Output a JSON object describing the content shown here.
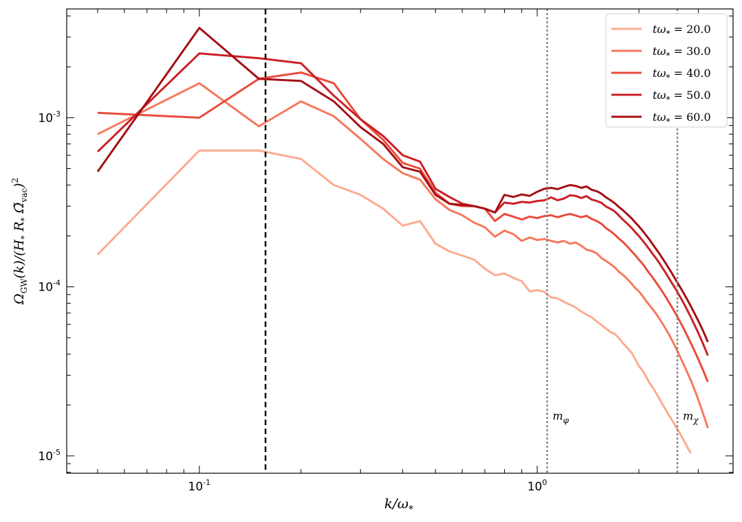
{
  "chart_data": {
    "type": "line",
    "title": "",
    "xlabel": "k/ω*",
    "ylabel": "Ω_GW(k)/(H* R* Ω̃_vac)²",
    "xscale": "log",
    "yscale": "log",
    "xlim": [
      0.0405,
      3.8
    ],
    "ylim": [
      7.9e-06,
      0.0044
    ],
    "x_ticks": [
      {
        "value": 0.1,
        "base": "10",
        "exp": "-1"
      },
      {
        "value": 1.0,
        "base": "10",
        "exp": "0"
      }
    ],
    "y_ticks": [
      {
        "value": 1e-05,
        "base": "10",
        "exp": "-5"
      },
      {
        "value": 0.0001,
        "base": "10",
        "exp": "-4"
      },
      {
        "value": 0.001,
        "base": "10",
        "exp": "-3"
      }
    ],
    "grid": false,
    "legend_position": "top-right",
    "colors": {
      "series": [
        "#fcab8f",
        "#f7785c",
        "#ea4b3c",
        "#cc1f25",
        "#a50f15"
      ],
      "mass_lines": "#888888",
      "dashed_line": "#000000"
    },
    "vertical_lines": [
      {
        "x": 0.157,
        "style": "dashed",
        "label": ""
      },
      {
        "x": 1.07,
        "style": "dotted",
        "label": "m_φ"
      },
      {
        "x": 2.6,
        "style": "dotted",
        "label": "m_χ"
      }
    ],
    "mass_labels": {
      "phi": "mφ",
      "chi": "mχ"
    },
    "x": [
      0.05,
      0.1,
      0.15,
      0.2,
      0.25,
      0.3,
      0.35,
      0.4,
      0.45,
      0.5,
      0.55,
      0.6,
      0.65,
      0.7,
      0.75,
      0.8,
      0.85,
      0.9,
      0.95,
      1.0,
      1.05,
      1.1,
      1.15,
      1.2,
      1.25,
      1.3,
      1.35,
      1.4,
      1.45,
      1.5,
      1.55,
      1.6,
      1.65,
      1.7,
      1.75,
      1.8,
      1.85,
      1.9,
      1.95,
      2.0,
      2.05,
      2.1,
      2.15,
      2.2,
      2.25,
      2.3,
      2.35,
      2.4,
      2.45,
      2.5,
      2.55,
      2.6,
      2.65,
      2.7,
      2.75,
      2.8,
      2.85,
      2.9,
      2.95,
      3.0,
      3.05,
      3.1,
      3.15,
      3.2
    ],
    "series": [
      {
        "name": "tω* = 20.0",
        "label_prefix": "tω* =",
        "label_value": "20.0",
        "values": [
          0.000155,
          0.00064,
          0.00064,
          0.00057,
          0.0004,
          0.00035,
          0.00029,
          0.00023,
          0.000245,
          0.00018,
          0.000162,
          0.000153,
          0.000145,
          0.000128,
          0.000117,
          0.00012,
          0.000113,
          0.000108,
          9.4e-05,
          9.55e-05,
          9.35e-05,
          8.65e-05,
          8.55e-05,
          8.15e-05,
          7.85e-05,
          7.55e-05,
          7.15e-05,
          6.85e-05,
          6.6e-05,
          6.25e-05,
          5.95e-05,
          5.65e-05,
          5.4e-05,
          5.25e-05,
          4.95e-05,
          4.6e-05,
          4.35e-05,
          4.1e-05,
          3.75e-05,
          3.4e-05,
          3.2e-05,
          2.95e-05,
          2.7e-05,
          2.53e-05,
          2.35e-05,
          2.18e-05,
          2.02e-05,
          1.88e-05,
          1.75e-05,
          1.64e-05,
          1.54e-05,
          1.44e-05,
          1.35e-05,
          1.26e-05,
          1.18e-05,
          1.1e-05,
          1.04e-05,
          null,
          null,
          null,
          null,
          null,
          null,
          null
        ]
      },
      {
        "name": "tω* = 30.0",
        "label_prefix": "tω* =",
        "label_value": "30.0",
        "values": [
          0.0008,
          0.0016,
          0.00089,
          0.00125,
          0.00102,
          0.00075,
          0.00057,
          0.00047,
          0.00043,
          0.00033,
          0.000285,
          0.000265,
          0.00024,
          0.000225,
          0.000198,
          0.000215,
          0.000205,
          0.000187,
          0.000196,
          0.000189,
          0.000192,
          0.000187,
          0.000183,
          0.000187,
          0.00018,
          0.000183,
          0.000175,
          0.000166,
          0.000163,
          0.000158,
          0.000148,
          0.000142,
          0.000136,
          0.00013,
          0.000122,
          0.000117,
          0.000111,
          0.000105,
          9.85e-05,
          9.4e-05,
          8.85e-05,
          8.25e-05,
          7.78e-05,
          7.35e-05,
          6.92e-05,
          6.48e-05,
          6.05e-05,
          5.65e-05,
          5.27e-05,
          4.88e-05,
          4.52e-05,
          4.18e-05,
          3.85e-05,
          3.55e-05,
          3.28e-05,
          3.03e-05,
          2.8e-05,
          2.57e-05,
          2.35e-05,
          2.14e-05,
          1.95e-05,
          1.77e-05,
          1.61e-05,
          1.46e-05
        ]
      },
      {
        "name": "tω* = 40.0",
        "label_prefix": "tω* =",
        "label_value": "40.0",
        "values": [
          0.00107,
          0.001,
          0.0017,
          0.00185,
          0.0016,
          0.00098,
          0.00074,
          0.00054,
          0.0005,
          0.00036,
          0.00031,
          0.0003,
          0.0003,
          0.00029,
          0.000245,
          0.00027,
          0.00026,
          0.00025,
          0.00026,
          0.000255,
          0.000262,
          0.000265,
          0.000258,
          0.000265,
          0.00027,
          0.000264,
          0.000258,
          0.000263,
          0.000252,
          0.000245,
          0.000236,
          0.000222,
          0.000213,
          0.000203,
          0.000192,
          0.000183,
          0.000173,
          0.000163,
          0.000154,
          0.000145,
          0.000137,
          0.000128,
          0.00012,
          0.000113,
          0.000106,
          9.95e-05,
          9.32e-05,
          8.72e-05,
          8.15e-05,
          7.62e-05,
          7.12e-05,
          6.65e-05,
          6.2e-05,
          5.78e-05,
          5.38e-05,
          5e-05,
          4.65e-05,
          4.32e-05,
          4.01e-05,
          3.72e-05,
          3.45e-05,
          3.2e-05,
          2.96e-05,
          2.74e-05
        ]
      },
      {
        "name": "tω* = 50.0",
        "label_prefix": "tω* =",
        "label_value": "50.0",
        "values": [
          0.00063,
          0.0024,
          0.00225,
          0.0021,
          0.00135,
          0.00098,
          0.00078,
          0.0006,
          0.00055,
          0.00038,
          0.00034,
          0.00031,
          0.0003,
          0.00029,
          0.000275,
          0.000315,
          0.00031,
          0.000318,
          0.000315,
          0.000322,
          0.000325,
          0.000338,
          0.000325,
          0.000333,
          0.000348,
          0.000345,
          0.000335,
          0.000344,
          0.000328,
          0.000322,
          0.000314,
          0.000298,
          0.000289,
          0.000278,
          0.000262,
          0.000248,
          0.000236,
          0.000224,
          0.000211,
          0.0002,
          0.000188,
          0.000177,
          0.000166,
          0.000156,
          0.000147,
          0.000138,
          0.000129,
          0.000121,
          0.000113,
          0.000106,
          9.95e-05,
          9.32e-05,
          8.72e-05,
          8.15e-05,
          7.62e-05,
          7.1e-05,
          6.62e-05,
          6.15e-05,
          5.72e-05,
          5.32e-05,
          4.94e-05,
          4.58e-05,
          4.24e-05,
          3.92e-05
        ]
      },
      {
        "name": "tω* = 60.0",
        "label_prefix": "tω* =",
        "label_value": "60.0",
        "values": [
          0.00048,
          0.0034,
          0.0017,
          0.00165,
          0.00125,
          0.00088,
          0.0007,
          0.00051,
          0.00048,
          0.00035,
          0.00031,
          0.000305,
          0.0003,
          0.00029,
          0.000275,
          0.00035,
          0.00034,
          0.000352,
          0.000345,
          0.000365,
          0.00038,
          0.000385,
          0.000378,
          0.00039,
          0.0004,
          0.000395,
          0.000385,
          0.000392,
          0.000375,
          0.000368,
          0.000355,
          0.000338,
          0.000325,
          0.000311,
          0.000295,
          0.000282,
          0.000268,
          0.000255,
          0.000241,
          0.000228,
          0.000215,
          0.000202,
          0.00019,
          0.000178,
          0.000167,
          0.000157,
          0.000147,
          0.000138,
          0.000129,
          0.000121,
          0.000113,
          0.000106,
          9.94e-05,
          9.33e-05,
          8.75e-05,
          8.2e-05,
          7.68e-05,
          7.18e-05,
          6.71e-05,
          6.27e-05,
          5.86e-05,
          5.46e-05,
          5.08e-05,
          4.72e-05
        ]
      }
    ]
  }
}
